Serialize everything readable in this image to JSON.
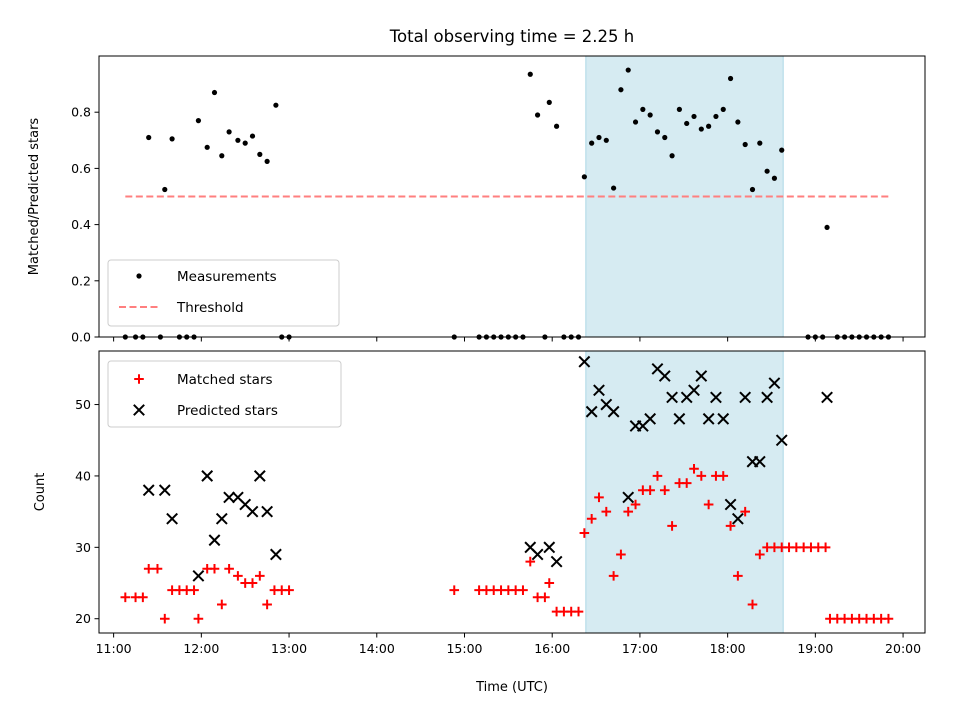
{
  "chart_data": [
    {
      "type": "scatter",
      "title": "Total observing time = 2.25 h",
      "xlabel": "",
      "ylabel": "Matched/Predicted stars",
      "xlim": [
        "10:50",
        "20:15"
      ],
      "ylim": [
        0.0,
        1.0
      ],
      "yticks": [
        "0.0",
        "0.2",
        "0.4",
        "0.6",
        "0.8"
      ],
      "shaded_span": [
        "16:23",
        "18:38"
      ],
      "legend": "lower-left",
      "series": [
        {
          "name": "Measurements",
          "marker": "dot",
          "color": "#000000",
          "points": [
            [
              "11:08",
              0.0
            ],
            [
              "11:15",
              0.0
            ],
            [
              "11:20",
              0.0
            ],
            [
              "11:24",
              0.71
            ],
            [
              "11:32",
              0.0
            ],
            [
              "11:35",
              0.525
            ],
            [
              "11:40",
              0.705
            ],
            [
              "11:45",
              0.0
            ],
            [
              "11:50",
              0.0
            ],
            [
              "11:55",
              0.0
            ],
            [
              "11:58",
              0.77
            ],
            [
              "12:04",
              0.675
            ],
            [
              "12:09",
              0.87
            ],
            [
              "12:14",
              0.645
            ],
            [
              "12:19",
              0.73
            ],
            [
              "12:25",
              0.7
            ],
            [
              "12:30",
              0.69
            ],
            [
              "12:35",
              0.715
            ],
            [
              "12:40",
              0.65
            ],
            [
              "12:45",
              0.625
            ],
            [
              "12:51",
              0.825
            ],
            [
              "12:55",
              0.0
            ],
            [
              "13:00",
              0.0
            ],
            [
              "14:53",
              0.0
            ],
            [
              "15:10",
              0.0
            ],
            [
              "15:15",
              0.0
            ],
            [
              "15:20",
              0.0
            ],
            [
              "15:25",
              0.0
            ],
            [
              "15:30",
              0.0
            ],
            [
              "15:35",
              0.0
            ],
            [
              "15:40",
              0.0
            ],
            [
              "15:45",
              0.935
            ],
            [
              "15:50",
              0.79
            ],
            [
              "15:55",
              0.0
            ],
            [
              "15:58",
              0.835
            ],
            [
              "16:03",
              0.75
            ],
            [
              "16:08",
              0.0
            ],
            [
              "16:13",
              0.0
            ],
            [
              "16:18",
              0.0
            ],
            [
              "16:22",
              0.57
            ],
            [
              "16:27",
              0.69
            ],
            [
              "16:32",
              0.71
            ],
            [
              "16:37",
              0.7
            ],
            [
              "16:42",
              0.53
            ],
            [
              "16:47",
              0.88
            ],
            [
              "16:52",
              0.95
            ],
            [
              "16:57",
              0.765
            ],
            [
              "17:02",
              0.81
            ],
            [
              "17:07",
              0.79
            ],
            [
              "17:12",
              0.73
            ],
            [
              "17:17",
              0.71
            ],
            [
              "17:22",
              0.645
            ],
            [
              "17:27",
              0.81
            ],
            [
              "17:32",
              0.76
            ],
            [
              "17:37",
              0.785
            ],
            [
              "17:42",
              0.74
            ],
            [
              "17:47",
              0.75
            ],
            [
              "17:52",
              0.785
            ],
            [
              "17:57",
              0.81
            ],
            [
              "18:02",
              0.92
            ],
            [
              "18:07",
              0.765
            ],
            [
              "18:12",
              0.685
            ],
            [
              "18:17",
              0.525
            ],
            [
              "18:22",
              0.69
            ],
            [
              "18:27",
              0.59
            ],
            [
              "18:32",
              0.565
            ],
            [
              "18:37",
              0.665
            ],
            [
              "18:55",
              0.0
            ],
            [
              "19:00",
              0.0
            ],
            [
              "19:05",
              0.0
            ],
            [
              "19:08",
              0.39
            ],
            [
              "19:15",
              0.0
            ],
            [
              "19:20",
              0.0
            ],
            [
              "19:25",
              0.0
            ],
            [
              "19:30",
              0.0
            ],
            [
              "19:35",
              0.0
            ],
            [
              "19:40",
              0.0
            ],
            [
              "19:45",
              0.0
            ],
            [
              "19:50",
              0.0
            ]
          ]
        },
        {
          "name": "Threshold",
          "type": "line",
          "style": "dashed",
          "color": "#ff7f7f",
          "points": [
            [
              "11:08",
              0.5
            ],
            [
              "19:50",
              0.5
            ]
          ]
        }
      ]
    },
    {
      "type": "scatter",
      "title": "",
      "xlabel": "Time (UTC)",
      "ylabel": "Count",
      "xlim": [
        "10:50",
        "20:15"
      ],
      "xticks": [
        "11:00",
        "12:00",
        "13:00",
        "14:00",
        "15:00",
        "16:00",
        "17:00",
        "18:00",
        "19:00",
        "20:00"
      ],
      "ylim": [
        18,
        57.5
      ],
      "yticks": [
        "20",
        "30",
        "40",
        "50"
      ],
      "shaded_span": [
        "16:23",
        "18:38"
      ],
      "legend": "upper-left",
      "series": [
        {
          "name": "Matched stars",
          "marker": "plus",
          "color": "#ff0000",
          "points": [
            [
              "11:08",
              23
            ],
            [
              "11:15",
              23
            ],
            [
              "11:20",
              23
            ],
            [
              "11:24",
              27
            ],
            [
              "11:30",
              27
            ],
            [
              "11:35",
              20
            ],
            [
              "11:40",
              24
            ],
            [
              "11:45",
              24
            ],
            [
              "11:50",
              24
            ],
            [
              "11:55",
              24
            ],
            [
              "11:58",
              20
            ],
            [
              "12:04",
              27
            ],
            [
              "12:09",
              27
            ],
            [
              "12:14",
              22
            ],
            [
              "12:19",
              27
            ],
            [
              "12:25",
              26
            ],
            [
              "12:30",
              25
            ],
            [
              "12:35",
              25
            ],
            [
              "12:40",
              26
            ],
            [
              "12:45",
              22
            ],
            [
              "12:50",
              24
            ],
            [
              "12:55",
              24
            ],
            [
              "13:00",
              24
            ],
            [
              "14:53",
              24
            ],
            [
              "15:10",
              24
            ],
            [
              "15:15",
              24
            ],
            [
              "15:20",
              24
            ],
            [
              "15:25",
              24
            ],
            [
              "15:30",
              24
            ],
            [
              "15:35",
              24
            ],
            [
              "15:40",
              24
            ],
            [
              "15:45",
              28
            ],
            [
              "15:50",
              23
            ],
            [
              "15:55",
              23
            ],
            [
              "15:58",
              25
            ],
            [
              "16:03",
              21
            ],
            [
              "16:08",
              21
            ],
            [
              "16:13",
              21
            ],
            [
              "16:18",
              21
            ],
            [
              "16:22",
              32
            ],
            [
              "16:27",
              34
            ],
            [
              "16:32",
              37
            ],
            [
              "16:37",
              35
            ],
            [
              "16:42",
              26
            ],
            [
              "16:47",
              29
            ],
            [
              "16:52",
              35
            ],
            [
              "16:57",
              36
            ],
            [
              "17:02",
              38
            ],
            [
              "17:07",
              38
            ],
            [
              "17:12",
              40
            ],
            [
              "17:17",
              38
            ],
            [
              "17:22",
              33
            ],
            [
              "17:27",
              39
            ],
            [
              "17:32",
              39
            ],
            [
              "17:37",
              41
            ],
            [
              "17:42",
              40
            ],
            [
              "17:47",
              36
            ],
            [
              "17:52",
              40
            ],
            [
              "17:57",
              40
            ],
            [
              "18:02",
              33
            ],
            [
              "18:07",
              26
            ],
            [
              "18:12",
              35
            ],
            [
              "18:17",
              22
            ],
            [
              "18:22",
              29
            ],
            [
              "18:27",
              30
            ],
            [
              "18:32",
              30
            ],
            [
              "18:37",
              30
            ],
            [
              "18:42",
              30
            ],
            [
              "18:47",
              30
            ],
            [
              "18:52",
              30
            ],
            [
              "18:57",
              30
            ],
            [
              "19:02",
              30
            ],
            [
              "19:07",
              30
            ],
            [
              "19:10",
              20
            ],
            [
              "19:15",
              20
            ],
            [
              "19:20",
              20
            ],
            [
              "19:25",
              20
            ],
            [
              "19:30",
              20
            ],
            [
              "19:35",
              20
            ],
            [
              "19:40",
              20
            ],
            [
              "19:45",
              20
            ],
            [
              "19:50",
              20
            ]
          ]
        },
        {
          "name": "Predicted stars",
          "marker": "x",
          "color": "#000000",
          "points": [
            [
              "11:24",
              38
            ],
            [
              "11:35",
              38
            ],
            [
              "11:40",
              34
            ],
            [
              "11:58",
              26
            ],
            [
              "12:04",
              40
            ],
            [
              "12:09",
              31
            ],
            [
              "12:14",
              34
            ],
            [
              "12:19",
              37
            ],
            [
              "12:25",
              37
            ],
            [
              "12:30",
              36
            ],
            [
              "12:35",
              35
            ],
            [
              "12:40",
              40
            ],
            [
              "12:45",
              35
            ],
            [
              "12:51",
              29
            ],
            [
              "15:45",
              30
            ],
            [
              "15:50",
              29
            ],
            [
              "15:58",
              30
            ],
            [
              "16:03",
              28
            ],
            [
              "16:22",
              56
            ],
            [
              "16:27",
              49
            ],
            [
              "16:32",
              52
            ],
            [
              "16:37",
              50
            ],
            [
              "16:42",
              49
            ],
            [
              "16:52",
              37
            ],
            [
              "16:57",
              47
            ],
            [
              "17:02",
              47
            ],
            [
              "17:07",
              48
            ],
            [
              "17:12",
              55
            ],
            [
              "17:17",
              54
            ],
            [
              "17:22",
              51
            ],
            [
              "17:27",
              48
            ],
            [
              "17:32",
              51
            ],
            [
              "17:37",
              52
            ],
            [
              "17:42",
              54
            ],
            [
              "17:47",
              48
            ],
            [
              "17:52",
              51
            ],
            [
              "17:57",
              48
            ],
            [
              "18:02",
              36
            ],
            [
              "18:07",
              34
            ],
            [
              "18:12",
              51
            ],
            [
              "18:17",
              42
            ],
            [
              "18:22",
              42
            ],
            [
              "18:27",
              51
            ],
            [
              "18:32",
              53
            ],
            [
              "18:37",
              45
            ],
            [
              "19:08",
              51
            ]
          ]
        }
      ]
    }
  ]
}
